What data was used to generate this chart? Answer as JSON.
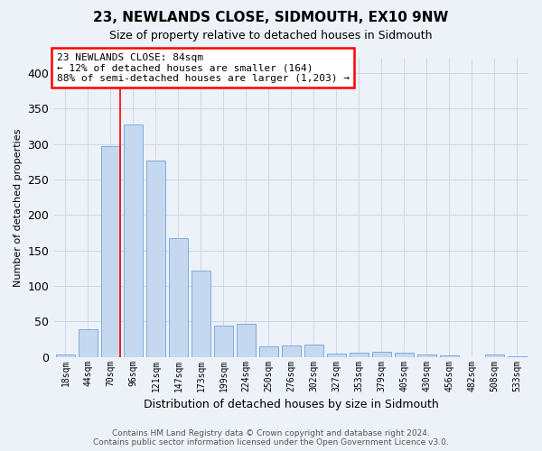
{
  "title": "23, NEWLANDS CLOSE, SIDMOUTH, EX10 9NW",
  "subtitle": "Size of property relative to detached houses in Sidmouth",
  "xlabel": "Distribution of detached houses by size in Sidmouth",
  "ylabel": "Number of detached properties",
  "bar_color": "#c5d8ef",
  "bar_edge_color": "#7aade0",
  "categories": [
    "18sqm",
    "44sqm",
    "70sqm",
    "96sqm",
    "121sqm",
    "147sqm",
    "173sqm",
    "199sqm",
    "224sqm",
    "250sqm",
    "276sqm",
    "302sqm",
    "327sqm",
    "353sqm",
    "379sqm",
    "405sqm",
    "430sqm",
    "456sqm",
    "482sqm",
    "508sqm",
    "533sqm"
  ],
  "values": [
    3,
    39,
    297,
    328,
    277,
    167,
    122,
    44,
    46,
    15,
    16,
    17,
    4,
    6,
    7,
    6,
    3,
    2,
    0,
    3,
    1
  ],
  "ylim": [
    0,
    420
  ],
  "yticks": [
    0,
    50,
    100,
    150,
    200,
    250,
    300,
    350,
    400
  ],
  "red_line_between_bins": [
    2,
    3
  ],
  "annotation_text": "23 NEWLANDS CLOSE: 84sqm\n← 12% of detached houses are smaller (164)\n88% of semi-detached houses are larger (1,203) →",
  "annotation_box_facecolor": "white",
  "annotation_box_edgecolor": "red",
  "footer_text": "Contains HM Land Registry data © Crown copyright and database right 2024.\nContains public sector information licensed under the Open Government Licence v3.0.",
  "background_color": "#edf1f8",
  "grid_color": "#d0d8e8",
  "title_fontsize": 11,
  "subtitle_fontsize": 9,
  "annotation_fontsize": 8,
  "ylabel_fontsize": 8,
  "xlabel_fontsize": 9
}
